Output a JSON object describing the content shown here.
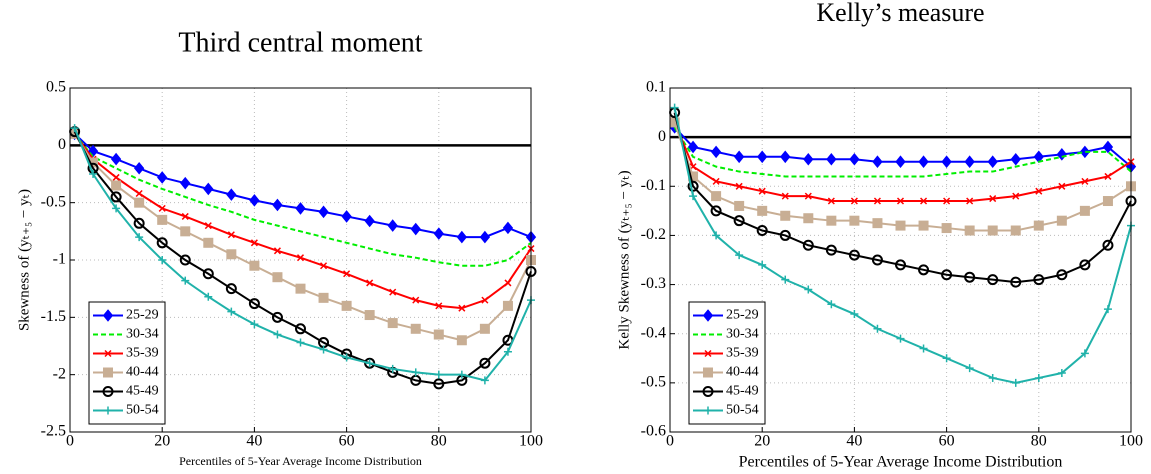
{
  "chart_data": [
    {
      "type": "line",
      "title": "Third central moment",
      "xlabel": "Percentiles of 5-Year Average Income Distribution",
      "ylabel": "Skewness of (yₜ₊₅ − yₜ)",
      "x": [
        1,
        5,
        10,
        15,
        20,
        25,
        30,
        35,
        40,
        45,
        50,
        55,
        60,
        65,
        70,
        75,
        80,
        85,
        90,
        95,
        100
      ],
      "xlim": [
        0,
        100
      ],
      "xticks": [
        0,
        20,
        40,
        60,
        80,
        100
      ],
      "ylim": [
        -2.5,
        0.5
      ],
      "yticks": [
        -2.5,
        -2,
        -1.5,
        -1,
        -0.5,
        0,
        0.5
      ],
      "grid": true,
      "reference_line": 0,
      "legend": "lower left",
      "series": [
        {
          "name": "25-29",
          "color": "#0000ff",
          "marker": "diamond",
          "values": [
            0.1,
            -0.05,
            -0.12,
            -0.2,
            -0.28,
            -0.33,
            -0.38,
            -0.43,
            -0.48,
            -0.52,
            -0.55,
            -0.58,
            -0.62,
            -0.66,
            -0.7,
            -0.73,
            -0.77,
            -0.8,
            -0.8,
            -0.72,
            -0.8
          ]
        },
        {
          "name": "30-34",
          "color": "#00ee00",
          "marker": "none",
          "dash": true,
          "values": [
            0.1,
            -0.1,
            -0.2,
            -0.3,
            -0.38,
            -0.45,
            -0.52,
            -0.58,
            -0.65,
            -0.7,
            -0.75,
            -0.8,
            -0.85,
            -0.9,
            -0.95,
            -0.98,
            -1.02,
            -1.05,
            -1.05,
            -1,
            -0.85
          ]
        },
        {
          "name": "35-39",
          "color": "#ff0000",
          "marker": "x",
          "values": [
            0.1,
            -0.12,
            -0.28,
            -0.42,
            -0.55,
            -0.62,
            -0.7,
            -0.78,
            -0.85,
            -0.92,
            -0.98,
            -1.05,
            -1.12,
            -1.2,
            -1.28,
            -1.35,
            -1.4,
            -1.42,
            -1.35,
            -1.2,
            -0.9
          ]
        },
        {
          "name": "40-44",
          "color": "#c8ae94",
          "marker": "square",
          "values": [
            0.1,
            -0.15,
            -0.35,
            -0.5,
            -0.65,
            -0.75,
            -0.85,
            -0.95,
            -1.05,
            -1.15,
            -1.25,
            -1.33,
            -1.4,
            -1.48,
            -1.55,
            -1.6,
            -1.65,
            -1.7,
            -1.6,
            -1.4,
            -1
          ]
        },
        {
          "name": "45-49",
          "color": "#000000",
          "marker": "circle",
          "values": [
            0.12,
            -0.2,
            -0.45,
            -0.68,
            -0.85,
            -1,
            -1.12,
            -1.25,
            -1.38,
            -1.5,
            -1.6,
            -1.72,
            -1.82,
            -1.9,
            -1.98,
            -2.05,
            -2.08,
            -2.05,
            -1.9,
            -1.7,
            -1.1
          ]
        },
        {
          "name": "50-54",
          "color": "#20b2aa",
          "marker": "plus",
          "values": [
            0.15,
            -0.25,
            -0.55,
            -0.8,
            -1,
            -1.18,
            -1.32,
            -1.45,
            -1.56,
            -1.65,
            -1.72,
            -1.78,
            -1.85,
            -1.9,
            -1.95,
            -1.98,
            -2,
            -2,
            -2.05,
            -1.8,
            -1.35
          ]
        }
      ]
    },
    {
      "type": "line",
      "title": "Kelly’s measure",
      "xlabel": "Percentiles of 5-Year Average Income Distribution",
      "ylabel": "Kelly Skewness of (yₜ₊₅ − yₜ)",
      "x": [
        1,
        5,
        10,
        15,
        20,
        25,
        30,
        35,
        40,
        45,
        50,
        55,
        60,
        65,
        70,
        75,
        80,
        85,
        90,
        95,
        100
      ],
      "xlim": [
        0,
        100
      ],
      "xticks": [
        0,
        20,
        40,
        60,
        80,
        100
      ],
      "ylim": [
        -0.6,
        0.1
      ],
      "yticks": [
        -0.6,
        -0.5,
        -0.4,
        -0.3,
        -0.2,
        -0.1,
        0,
        0.1
      ],
      "grid": true,
      "reference_line": 0,
      "legend": "lower left",
      "series": [
        {
          "name": "25-29",
          "color": "#0000ff",
          "marker": "diamond",
          "values": [
            0.02,
            -0.02,
            -0.03,
            -0.04,
            -0.04,
            -0.04,
            -0.045,
            -0.045,
            -0.045,
            -0.05,
            -0.05,
            -0.05,
            -0.05,
            -0.05,
            -0.05,
            -0.045,
            -0.04,
            -0.035,
            -0.03,
            -0.02,
            -0.06
          ]
        },
        {
          "name": "30-34",
          "color": "#00ee00",
          "marker": "none",
          "dash": true,
          "values": [
            0.02,
            -0.04,
            -0.06,
            -0.07,
            -0.075,
            -0.08,
            -0.08,
            -0.08,
            -0.08,
            -0.08,
            -0.08,
            -0.08,
            -0.075,
            -0.07,
            -0.07,
            -0.06,
            -0.05,
            -0.04,
            -0.03,
            -0.03,
            -0.07
          ]
        },
        {
          "name": "35-39",
          "color": "#ff0000",
          "marker": "x",
          "values": [
            0.03,
            -0.06,
            -0.09,
            -0.1,
            -0.11,
            -0.12,
            -0.12,
            -0.13,
            -0.13,
            -0.13,
            -0.13,
            -0.13,
            -0.13,
            -0.13,
            -0.125,
            -0.12,
            -0.11,
            -0.1,
            -0.09,
            -0.08,
            -0.05
          ]
        },
        {
          "name": "40-44",
          "color": "#c8ae94",
          "marker": "square",
          "values": [
            0.03,
            -0.08,
            -0.12,
            -0.14,
            -0.15,
            -0.16,
            -0.165,
            -0.17,
            -0.17,
            -0.175,
            -0.18,
            -0.18,
            -0.185,
            -0.19,
            -0.19,
            -0.19,
            -0.18,
            -0.17,
            -0.15,
            -0.13,
            -0.1
          ]
        },
        {
          "name": "45-49",
          "color": "#000000",
          "marker": "circle",
          "values": [
            0.05,
            -0.1,
            -0.15,
            -0.17,
            -0.19,
            -0.2,
            -0.22,
            -0.23,
            -0.24,
            -0.25,
            -0.26,
            -0.27,
            -0.28,
            -0.285,
            -0.29,
            -0.295,
            -0.29,
            -0.28,
            -0.26,
            -0.22,
            -0.13
          ]
        },
        {
          "name": "50-54",
          "color": "#20b2aa",
          "marker": "plus",
          "values": [
            0.06,
            -0.12,
            -0.2,
            -0.24,
            -0.26,
            -0.29,
            -0.31,
            -0.34,
            -0.36,
            -0.39,
            -0.41,
            -0.43,
            -0.45,
            -0.47,
            -0.49,
            -0.5,
            -0.49,
            -0.48,
            -0.44,
            -0.35,
            -0.18
          ]
        }
      ]
    }
  ]
}
